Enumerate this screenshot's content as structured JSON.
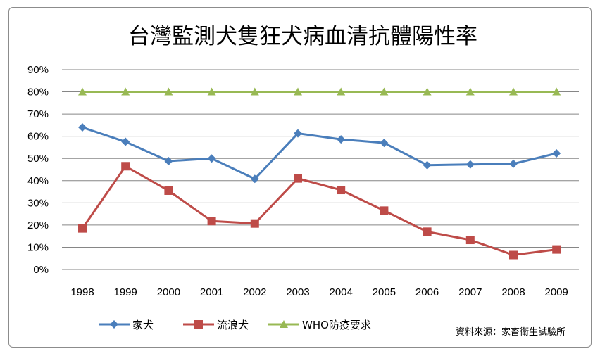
{
  "chart_data": {
    "type": "line",
    "title": "台灣監測犬隻狂犬病血清抗體陽性率",
    "categories": [
      "1998",
      "1999",
      "2000",
      "2001",
      "2002",
      "2003",
      "2004",
      "2005",
      "2006",
      "2007",
      "2008",
      "2009"
    ],
    "y_ticks": [
      "0%",
      "10%",
      "20%",
      "30%",
      "40%",
      "50%",
      "60%",
      "70%",
      "80%",
      "90%"
    ],
    "ylim": [
      0,
      90
    ],
    "y_unit": "%",
    "grid": "horizontal",
    "legend_position": "bottom",
    "series": [
      {
        "name": "家犬",
        "color": "#4a7ebb",
        "marker": "diamond",
        "values": [
          64,
          57.5,
          48.8,
          50,
          40.8,
          61.3,
          58.6,
          57,
          47,
          47.3,
          47.6,
          52.3
        ]
      },
      {
        "name": "流浪犬",
        "color": "#be4b48",
        "marker": "square",
        "values": [
          18.5,
          46.5,
          35.5,
          21.8,
          20.7,
          41,
          35.8,
          26.5,
          17,
          13.3,
          6.5,
          9
        ]
      },
      {
        "name": "WHO防疫要求",
        "color": "#98b954",
        "marker": "triangle",
        "values": [
          80,
          80,
          80,
          80,
          80,
          80,
          80,
          80,
          80,
          80,
          80,
          80
        ]
      }
    ],
    "source_note": "資料來源：家畜衛生試驗所"
  }
}
